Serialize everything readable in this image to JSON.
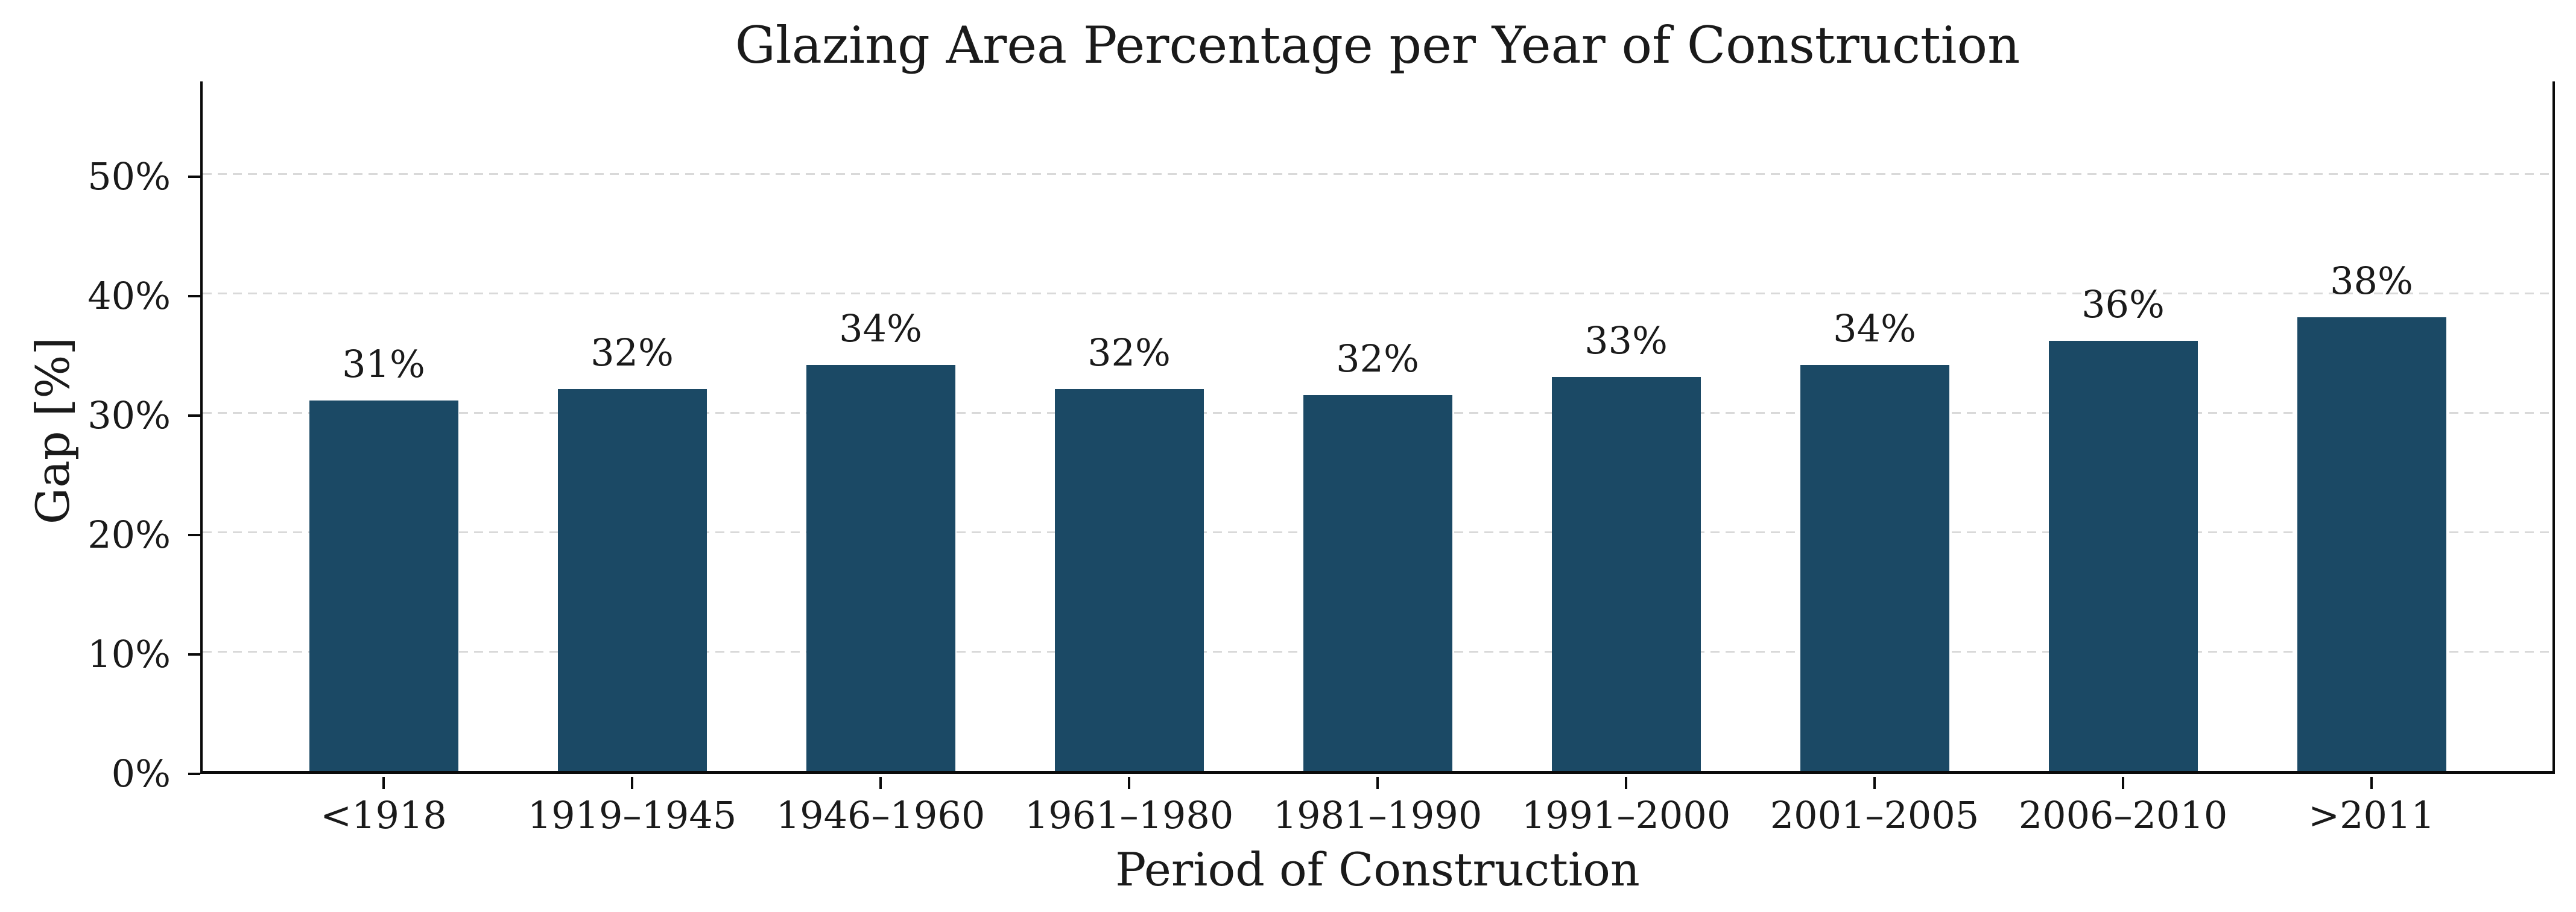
{
  "chart_data": {
    "type": "bar",
    "title": "Glazing Area Percentage per Year of Construction",
    "xlabel": "Period of Construction",
    "ylabel": "Gap [%]",
    "categories": [
      "<1918",
      "1919–1945",
      "1946–1960",
      "1961–1980",
      "1981–1990",
      "1991–2000",
      "2001–2005",
      "2006–2010",
      ">2011"
    ],
    "values": [
      31,
      32,
      34,
      32,
      31.5,
      33,
      34,
      36,
      38
    ],
    "bar_labels": [
      "31%",
      "32%",
      "34%",
      "32%",
      "32%",
      "33%",
      "34%",
      "36%",
      "38%"
    ],
    "ytick_values": [
      0,
      10,
      20,
      30,
      40,
      50
    ],
    "ytick_labels": [
      "0%",
      "10%",
      "20%",
      "30%",
      "40%",
      "50%"
    ],
    "ylim": [
      0,
      58
    ],
    "grid": "horizontal-dashed",
    "legend": "none",
    "colors": {
      "bar": "#1b4965",
      "axis": "#0a0a0a",
      "grid": "#d9d9d9",
      "text": "#1a1a1a",
      "background": "#ffffff"
    }
  }
}
